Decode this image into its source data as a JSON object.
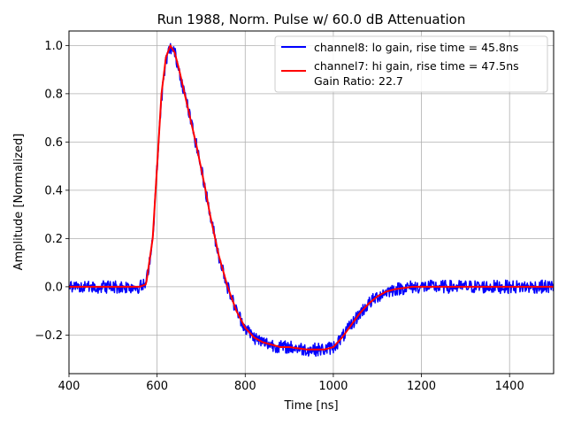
{
  "chart_data": {
    "type": "line",
    "title": "Run 1988, Norm. Pulse w/ 60.0 dB Attenuation",
    "xlabel": "Time [ns]",
    "ylabel": "Amplitude [Normalized]",
    "xlim": [
      400,
      1500
    ],
    "ylim": [
      -0.36,
      1.06
    ],
    "xticks": [
      400,
      600,
      800,
      1000,
      1200,
      1400
    ],
    "yticks": [
      -0.2,
      0.0,
      0.2,
      0.4,
      0.6,
      0.8,
      1.0
    ],
    "ytick_labels": [
      "−0.2",
      "0.0",
      "0.2",
      "0.4",
      "0.6",
      "0.8",
      "1.0"
    ],
    "grid": true,
    "legend_position": "top-right",
    "annotation": "Gain Ratio: 22.7",
    "series": [
      {
        "name": "channel8: lo gain, rise time = 45.8ns",
        "color": "#0000ff",
        "noisy": true,
        "x": [
          400,
          560,
          575,
          590,
          600,
          610,
          620,
          630,
          640,
          650,
          660,
          670,
          680,
          690,
          700,
          710,
          720,
          740,
          760,
          780,
          800,
          820,
          840,
          860,
          880,
          900,
          920,
          940,
          960,
          980,
          1000,
          1020,
          1040,
          1060,
          1080,
          1100,
          1120,
          1140,
          1160,
          1180,
          1200,
          1250,
          1300,
          1400,
          1500
        ],
        "y": [
          0.0,
          0.0,
          0.01,
          0.2,
          0.5,
          0.78,
          0.94,
          0.99,
          0.97,
          0.9,
          0.82,
          0.74,
          0.66,
          0.58,
          0.49,
          0.4,
          0.3,
          0.13,
          0.0,
          -0.1,
          -0.17,
          -0.21,
          -0.23,
          -0.24,
          -0.25,
          -0.25,
          -0.255,
          -0.26,
          -0.26,
          -0.26,
          -0.25,
          -0.21,
          -0.16,
          -0.11,
          -0.07,
          -0.04,
          -0.02,
          -0.01,
          -0.005,
          0.0,
          0.0,
          0.0,
          0.0,
          0.0,
          0.0
        ]
      },
      {
        "name": "channel7: hi gain, rise time = 47.5ns",
        "color": "#ff0000",
        "noisy": false,
        "x": [
          400,
          560,
          575,
          590,
          600,
          610,
          620,
          630,
          640,
          650,
          660,
          670,
          680,
          690,
          700,
          710,
          720,
          740,
          760,
          780,
          800,
          820,
          840,
          860,
          880,
          900,
          920,
          940,
          960,
          980,
          1000,
          1020,
          1040,
          1060,
          1080,
          1100,
          1120,
          1140,
          1160,
          1180,
          1200,
          1250,
          1300,
          1400,
          1500
        ],
        "y": [
          0.0,
          0.0,
          0.01,
          0.2,
          0.5,
          0.8,
          0.95,
          1.0,
          0.97,
          0.9,
          0.82,
          0.74,
          0.66,
          0.58,
          0.49,
          0.4,
          0.3,
          0.13,
          0.0,
          -0.1,
          -0.17,
          -0.21,
          -0.23,
          -0.24,
          -0.25,
          -0.25,
          -0.255,
          -0.26,
          -0.26,
          -0.26,
          -0.25,
          -0.21,
          -0.16,
          -0.11,
          -0.07,
          -0.04,
          -0.02,
          -0.01,
          -0.005,
          0.0,
          0.0,
          0.0,
          0.0,
          0.0,
          0.0
        ]
      }
    ]
  }
}
